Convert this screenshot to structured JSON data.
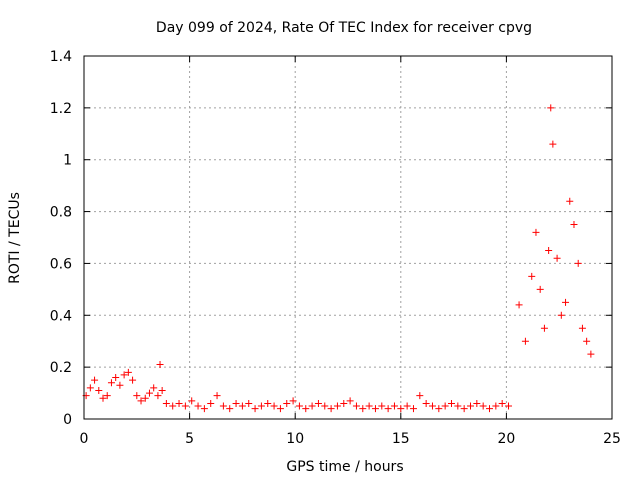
{
  "chart_data": {
    "type": "scatter",
    "title": "Day 099 of 2024, Rate Of TEC Index for receiver cpvg",
    "xlabel": "GPS time / hours",
    "ylabel": "ROTI / TECUs",
    "xlim": [
      0,
      25
    ],
    "ylim": [
      0,
      1.4
    ],
    "x_ticks": [
      "0",
      "5",
      "10",
      "15",
      "20",
      "25"
    ],
    "y_ticks": [
      "0",
      "0.2",
      "0.4",
      "0.6",
      "0.8",
      "1",
      "1.2",
      "1.4"
    ],
    "grid": true,
    "marker": "+",
    "color": "#ff0000",
    "series": [
      {
        "x": [
          0.1,
          0.3,
          0.5,
          0.7,
          0.9,
          1.1,
          1.3,
          1.5,
          1.7,
          1.9,
          2.1,
          2.3,
          2.5,
          2.7,
          2.9,
          3.1,
          3.3,
          3.5,
          3.6,
          3.7,
          3.9,
          4.2,
          4.5,
          4.8,
          5.1,
          5.4,
          5.7,
          6.0,
          6.3,
          6.6,
          6.9,
          7.2,
          7.5,
          7.8,
          8.1,
          8.4,
          8.7,
          9.0,
          9.3,
          9.6,
          9.9,
          10.2,
          10.5,
          10.8,
          11.1,
          11.4,
          11.7,
          12.0,
          12.3,
          12.6,
          12.9,
          13.2,
          13.5,
          13.8,
          14.1,
          14.4,
          14.7,
          15.0,
          15.3,
          15.6,
          15.9,
          16.2,
          16.5,
          16.8,
          17.1,
          17.4,
          17.7,
          18.0,
          18.3,
          18.6,
          18.9,
          19.2,
          19.5,
          19.8,
          20.1,
          20.6,
          20.9,
          21.2,
          21.4,
          21.6,
          21.8,
          22.0,
          22.1,
          22.2,
          22.4,
          22.6,
          22.8,
          23.0,
          23.2,
          23.4,
          23.6,
          23.8,
          24.0
        ],
        "y": [
          0.09,
          0.12,
          0.15,
          0.11,
          0.08,
          0.09,
          0.14,
          0.16,
          0.13,
          0.17,
          0.18,
          0.15,
          0.09,
          0.07,
          0.08,
          0.1,
          0.12,
          0.09,
          0.21,
          0.11,
          0.06,
          0.05,
          0.06,
          0.05,
          0.07,
          0.05,
          0.04,
          0.06,
          0.09,
          0.05,
          0.04,
          0.06,
          0.05,
          0.06,
          0.04,
          0.05,
          0.06,
          0.05,
          0.04,
          0.06,
          0.07,
          0.05,
          0.04,
          0.05,
          0.06,
          0.05,
          0.04,
          0.05,
          0.06,
          0.07,
          0.05,
          0.04,
          0.05,
          0.04,
          0.05,
          0.04,
          0.05,
          0.04,
          0.05,
          0.04,
          0.09,
          0.06,
          0.05,
          0.04,
          0.05,
          0.06,
          0.05,
          0.04,
          0.05,
          0.06,
          0.05,
          0.04,
          0.05,
          0.06,
          0.05,
          0.44,
          0.3,
          0.55,
          0.72,
          0.5,
          0.35,
          0.65,
          1.2,
          1.06,
          0.62,
          0.4,
          0.45,
          0.84,
          0.75,
          0.6,
          0.35,
          0.3,
          0.25
        ]
      }
    ]
  }
}
